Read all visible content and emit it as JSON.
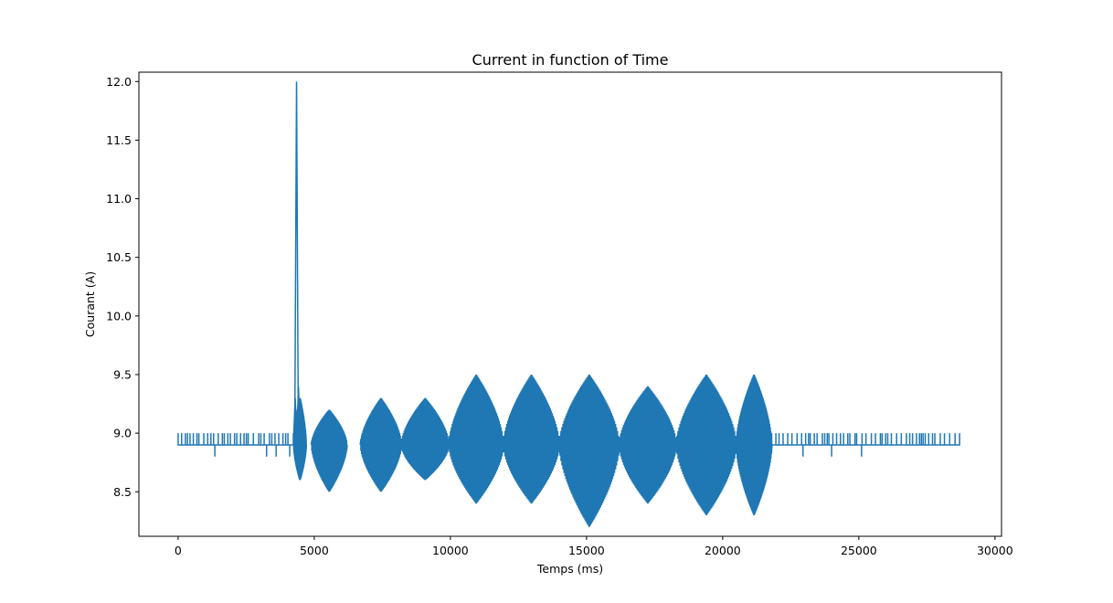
{
  "chart_data": {
    "type": "line",
    "title": "Current in function of Time",
    "xlabel": "Temps (ms)",
    "ylabel": "Courant (A)",
    "xlim": [
      -1440,
      30240
    ],
    "ylim": [
      8.12,
      12.08
    ],
    "xticks": [
      0,
      5000,
      10000,
      15000,
      20000,
      25000,
      30000
    ],
    "xtick_labels": [
      "0",
      "5000",
      "10000",
      "15000",
      "20000",
      "25000",
      "30000"
    ],
    "yticks": [
      8.5,
      9.0,
      9.5,
      10.0,
      10.5,
      11.0,
      11.5,
      12.0
    ],
    "ytick_labels": [
      "8.5",
      "9.0",
      "9.5",
      "10.0",
      "10.5",
      "11.0",
      "11.5",
      "12.0"
    ],
    "grid": false,
    "series": [
      {
        "color": "#1f77b4",
        "baseline": 8.9,
        "quiet_segments": [
          {
            "x_start": 0,
            "x_end": 4250,
            "toggle_high": 9.0,
            "low_dips": [
              {
                "x": 1350,
                "y": 8.8
              },
              {
                "x": 3250,
                "y": 8.8
              },
              {
                "x": 3600,
                "y": 8.8
              },
              {
                "x": 4100,
                "y": 8.8
              }
            ]
          },
          {
            "x_start": 21800,
            "x_end": 28700,
            "toggle_high": 9.0,
            "low_dips": [
              {
                "x": 22950,
                "y": 8.8
              },
              {
                "x": 24000,
                "y": 8.8
              },
              {
                "x": 25100,
                "y": 8.8
              }
            ]
          }
        ],
        "peaks": [
          {
            "x": 4300,
            "y": 9.3
          },
          {
            "x": 4350,
            "y": 12.0
          },
          {
            "x": 4420,
            "y": 9.4
          }
        ],
        "bursts": [
          {
            "x_start": 4250,
            "x_end": 4700,
            "max": 9.3,
            "min": 8.6
          },
          {
            "x_start": 4900,
            "x_end": 6200,
            "max": 9.2,
            "min": 8.5
          },
          {
            "x_start": 6700,
            "x_end": 8200,
            "max": 9.3,
            "min": 8.5
          },
          {
            "x_start": 8200,
            "x_end": 9950,
            "max": 9.3,
            "min": 8.6
          },
          {
            "x_start": 9950,
            "x_end": 11950,
            "max": 9.5,
            "min": 8.4
          },
          {
            "x_start": 11950,
            "x_end": 14000,
            "max": 9.5,
            "min": 8.4
          },
          {
            "x_start": 14000,
            "x_end": 16200,
            "max": 9.5,
            "min": 8.2
          },
          {
            "x_start": 16200,
            "x_end": 18300,
            "max": 9.4,
            "min": 8.4
          },
          {
            "x_start": 18300,
            "x_end": 20500,
            "max": 9.5,
            "min": 8.3
          },
          {
            "x_start": 20500,
            "x_end": 21800,
            "max": 9.5,
            "min": 8.3
          }
        ]
      }
    ]
  }
}
